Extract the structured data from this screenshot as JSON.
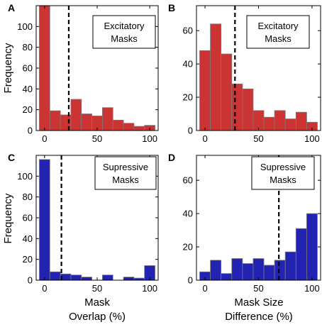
{
  "figure": {
    "ylabel": "Frequency",
    "xlabel_left": [
      "Mask",
      "Overlap (%)"
    ],
    "xlabel_right": [
      "Mask Size",
      "Difference (%)"
    ]
  },
  "colors": {
    "excitatory": "#cc3333",
    "suppressive": "#2222b3",
    "edge": "#7a7a7a",
    "dashed": "#000000"
  },
  "chart_data": [
    {
      "type": "bar",
      "panel": "A",
      "legend": [
        "Excitatory",
        "Masks"
      ],
      "bar_color": "#cc3333",
      "x": [
        0,
        10,
        20,
        30,
        40,
        50,
        60,
        70,
        80,
        90,
        100
      ],
      "values": [
        120,
        19,
        15,
        30,
        16,
        14,
        22,
        10,
        7,
        4,
        5
      ],
      "xlim": [
        -8,
        108
      ],
      "ylim": [
        0,
        120
      ],
      "xticks": [
        0,
        50,
        100
      ],
      "yticks": [
        0,
        20,
        40,
        60,
        80,
        100
      ],
      "threshold": 23,
      "ylabel": "Frequency"
    },
    {
      "type": "bar",
      "panel": "B",
      "legend": [
        "Excitatory",
        "Masks"
      ],
      "bar_color": "#cc3333",
      "x": [
        0,
        10,
        20,
        30,
        40,
        50,
        60,
        70,
        80,
        90,
        100
      ],
      "values": [
        48,
        64,
        46,
        28,
        25,
        12,
        8,
        12,
        7,
        11,
        5
      ],
      "xlim": [
        -8,
        108
      ],
      "ylim": [
        0,
        75
      ],
      "xticks": [
        0,
        50,
        100
      ],
      "yticks": [
        0,
        20,
        40,
        60
      ],
      "threshold": 28
    },
    {
      "type": "bar",
      "panel": "C",
      "legend": [
        "Supressive",
        "Masks"
      ],
      "bar_color": "#2222b3",
      "x": [
        0,
        10,
        20,
        30,
        40,
        50,
        60,
        70,
        80,
        90,
        100
      ],
      "values": [
        116,
        8,
        6,
        5,
        3,
        0,
        5,
        0,
        3,
        2,
        14
      ],
      "xlim": [
        -8,
        108
      ],
      "ylim": [
        0,
        120
      ],
      "xticks": [
        0,
        50,
        100
      ],
      "yticks": [
        0,
        20,
        40,
        60,
        80,
        100
      ],
      "threshold": 16,
      "ylabel": "Frequency",
      "xlabel": [
        "Mask",
        "Overlap (%)"
      ]
    },
    {
      "type": "bar",
      "panel": "D",
      "legend": [
        "Supressive",
        "Masks"
      ],
      "bar_color": "#2222b3",
      "x": [
        0,
        10,
        20,
        30,
        40,
        50,
        60,
        70,
        80,
        90,
        100
      ],
      "values": [
        5,
        12,
        4,
        13,
        10,
        13,
        9,
        12,
        17,
        31,
        40
      ],
      "xlim": [
        -8,
        108
      ],
      "ylim": [
        0,
        75
      ],
      "xticks": [
        0,
        50,
        100
      ],
      "yticks": [
        0,
        20,
        40,
        60
      ],
      "threshold": 69,
      "xlabel": [
        "Mask Size",
        "Difference (%)"
      ]
    }
  ]
}
